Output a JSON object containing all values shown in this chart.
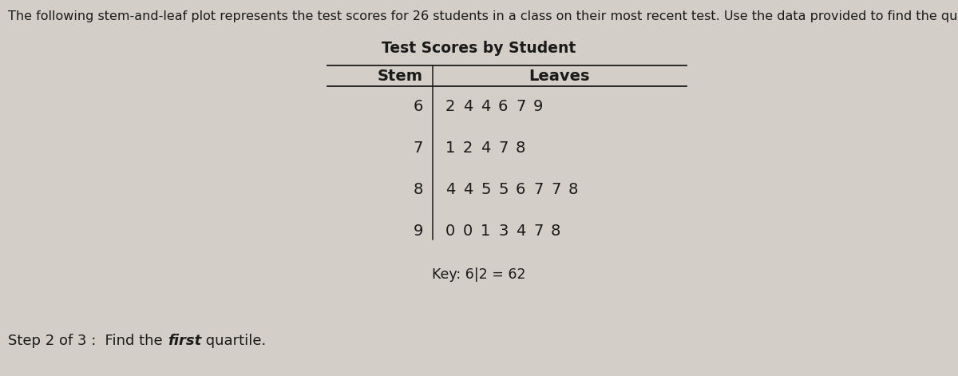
{
  "title": "Test Scores by Student",
  "header_stem": "Stem",
  "header_leaves": "Leaves",
  "rows": [
    {
      "stem": "6",
      "leaves": [
        "2",
        "4",
        "4",
        "6",
        "7",
        "9"
      ]
    },
    {
      "stem": "7",
      "leaves": [
        "1",
        "2",
        "4",
        "7",
        "8"
      ]
    },
    {
      "stem": "8",
      "leaves": [
        "4",
        "4",
        "5",
        "5",
        "6",
        "7",
        "7",
        "8"
      ]
    },
    {
      "stem": "9",
      "leaves": [
        "0",
        "0",
        "1",
        "3",
        "4",
        "7",
        "8"
      ]
    }
  ],
  "key_text": "Key: 6|2 = 62",
  "intro_text": "The following stem-and-leaf plot represents the test scores for 26 students in a class on their most recent test. Use the data provided to find the quartiles",
  "bg_color": "#d3cec8",
  "text_color": "#1a1a1a",
  "font_size_intro": 11.5,
  "font_size_title": 13.5,
  "font_size_table": 14,
  "font_size_key": 12.5,
  "font_size_step": 13
}
